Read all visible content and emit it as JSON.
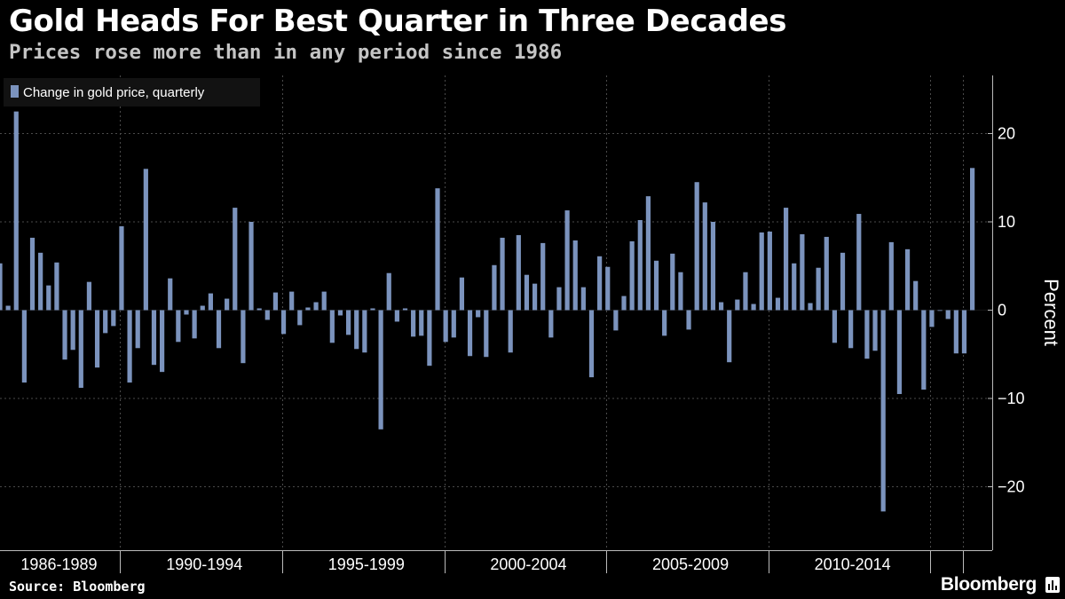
{
  "header": {
    "title": "Gold Heads For Best Quarter in Three Decades",
    "subtitle": "Prices rose more than in any period since 1986"
  },
  "footer": {
    "source": "Source: Bloomberg",
    "brand": "Bloomberg"
  },
  "colors": {
    "background": "#000000",
    "bar": "#7b93bd",
    "grid": "#4a4a4a",
    "text": "#ffffff"
  },
  "chart_data": {
    "type": "bar",
    "title": "Gold Heads For Best Quarter in Three Decades",
    "subtitle": "Prices rose more than in any period since 1986",
    "ylabel": "Percent",
    "ylim": [
      -27,
      27
    ],
    "yticks": [
      20,
      10,
      0,
      -10,
      -20
    ],
    "grid": true,
    "legend": {
      "position": "top-left",
      "entries": [
        "Change in gold price, quarterly"
      ]
    },
    "period_labels": [
      "1986-1989",
      "1990-1994",
      "1995-1999",
      "2000-2004",
      "2005-2009",
      "2010-2014"
    ],
    "series": [
      {
        "name": "Change in gold price, quarterly",
        "values": [
          5.3,
          0.5,
          22.5,
          -8.2,
          8.2,
          6.5,
          2.8,
          5.4,
          -5.6,
          -4.5,
          -8.8,
          3.2,
          -6.5,
          -2.6,
          -1.8,
          9.5,
          -8.2,
          -4.3,
          16.0,
          -6.2,
          -7.0,
          3.6,
          -3.6,
          -0.5,
          -3.2,
          0.5,
          1.9,
          -4.3,
          1.3,
          11.6,
          -6.0,
          10.0,
          0.2,
          -1.1,
          2.0,
          -2.7,
          2.1,
          -1.7,
          0.3,
          0.9,
          2.1,
          -3.7,
          -0.6,
          -2.8,
          -4.4,
          -4.8,
          0.2,
          -13.5,
          4.2,
          -1.3,
          0.2,
          -3.0,
          -2.9,
          -6.3,
          13.8,
          -3.6,
          -3.1,
          3.7,
          -5.2,
          -0.8,
          -5.3,
          5.1,
          8.2,
          -4.8,
          8.5,
          4.0,
          3.0,
          7.6,
          -3.1,
          2.6,
          11.3,
          7.9,
          2.6,
          -7.6,
          6.1,
          4.9,
          -2.3,
          1.6,
          7.8,
          10.2,
          12.9,
          5.6,
          -2.9,
          6.4,
          4.3,
          -2.2,
          14.5,
          12.2,
          10.0,
          0.9,
          -5.9,
          1.2,
          4.3,
          0.7,
          8.8,
          8.9,
          1.4,
          11.6,
          5.3,
          8.6,
          0.8,
          4.8,
          8.3,
          -3.7,
          6.5,
          -4.3,
          10.9,
          -5.5,
          -4.6,
          -22.8,
          7.7,
          -9.5,
          6.9,
          3.3,
          -9.0,
          -1.9,
          0.0,
          -1.0,
          -4.9,
          -4.9,
          16.1
        ]
      }
    ]
  }
}
